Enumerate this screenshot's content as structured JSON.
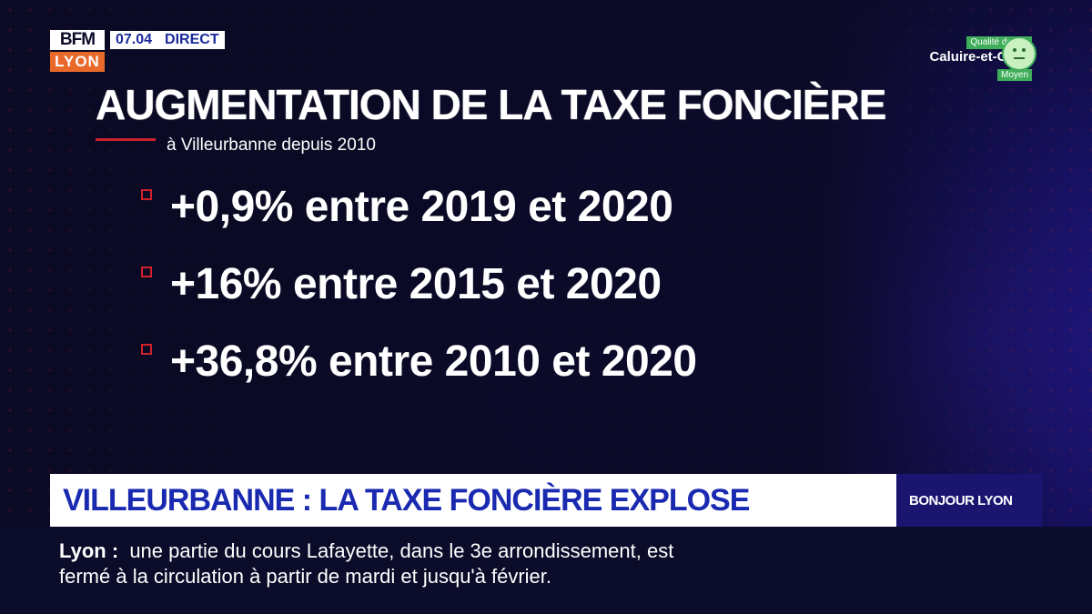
{
  "logo": {
    "brand": "BFM",
    "city": "LYON"
  },
  "clock": "07.04",
  "live": "DIRECT",
  "air_quality": {
    "label": "Qualité de l'air",
    "city": "Caluire-et-Cuire",
    "level": "Moyen",
    "icon": "neutral-face-icon"
  },
  "title": "AUGMENTATION DE LA TAXE FONCIÈRE",
  "subtitle": "à Villeurbanne depuis 2010",
  "bullets": [
    "+0,9% entre 2019 et 2020",
    "+16% entre 2015 et 2020",
    "+36,8% entre 2010 et 2020"
  ],
  "headline": "VILLEURBANNE : LA TAXE FONCIÈRE EXPLOSE",
  "show_name": "BONJOUR LYON",
  "ticker": {
    "location": "Lyon :",
    "line1": "une partie du cours Lafayette, dans le 3e arrondissement, est",
    "line2": "fermé à la circulation à partir de mardi et jusqu'à février."
  },
  "colors": {
    "accent_red": "#d0202a",
    "brand_blue": "#1a2ab0",
    "air_green": "#3fae5a"
  }
}
